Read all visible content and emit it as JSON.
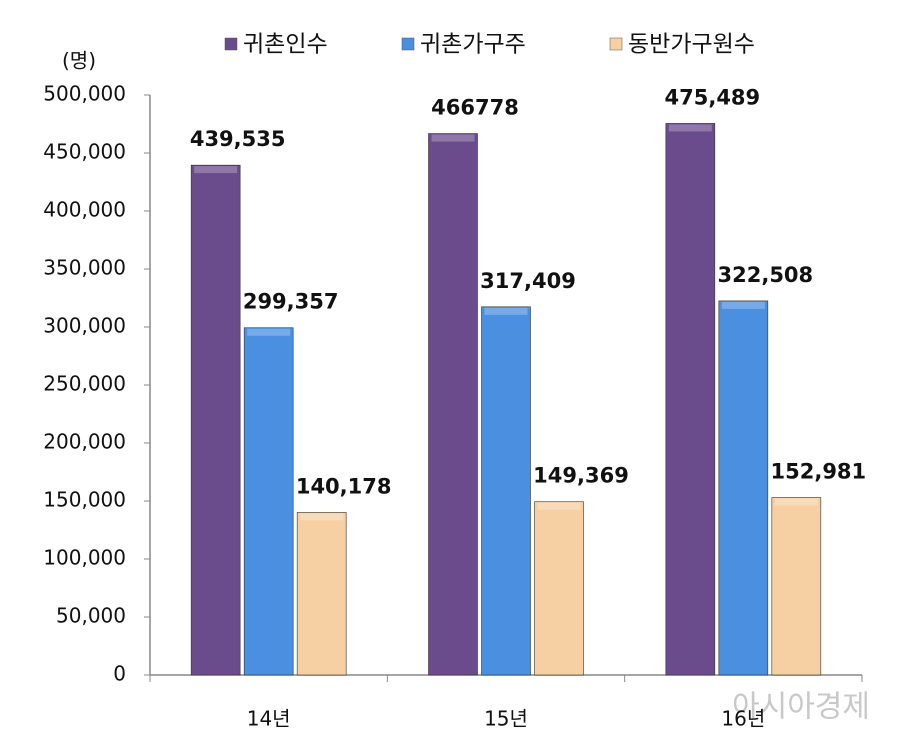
{
  "chart_data": {
    "type": "bar",
    "y_axis_label": "(명)",
    "categories": [
      "14년",
      "15년",
      "16년"
    ],
    "series": [
      {
        "name": "귀촌인수",
        "color": "#6a4b8c",
        "values": [
          439535,
          466778,
          475489
        ],
        "value_labels": [
          "439,535",
          "466778",
          "475,489"
        ]
      },
      {
        "name": "귀촌가구주",
        "color": "#4a8fe0",
        "values": [
          299357,
          317409,
          322508
        ],
        "value_labels": [
          "299,357",
          "317,409",
          "322,508"
        ]
      },
      {
        "name": "동반가구원수",
        "color": "#f6d0a2",
        "values": [
          140178,
          149369,
          152981
        ],
        "value_labels": [
          "140,178",
          "149,369",
          "152,981"
        ]
      }
    ],
    "ylim": [
      0,
      500000
    ],
    "yticks": [
      0,
      {
        "value": 50000,
        "label": "50,000"
      },
      {
        "value": 100000,
        "label": "100,000"
      },
      {
        "value": 150000,
        "label": "150,000"
      },
      {
        "value": 200000,
        "label": "200,000"
      },
      {
        "value": 250000,
        "label": "250,000"
      },
      {
        "value": 300000,
        "label": "300,000"
      },
      {
        "value": 350000,
        "label": "350,000"
      },
      {
        "value": 400000,
        "label": "400,000"
      },
      {
        "value": 450000,
        "label": "450,000"
      },
      {
        "value": 500000,
        "label": "500,000"
      }
    ],
    "grid": false,
    "legend": "top",
    "watermark": "아시아경제"
  }
}
